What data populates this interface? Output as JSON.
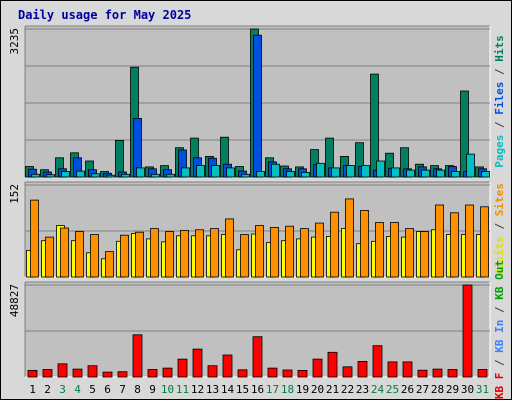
{
  "chart_data": {
    "title": "Daily usage for May 2025",
    "type": "bar",
    "days": [
      "1",
      "2",
      "3",
      "4",
      "5",
      "6",
      "7",
      "8",
      "9",
      "10",
      "11",
      "12",
      "13",
      "14",
      "15",
      "16",
      "17",
      "18",
      "19",
      "20",
      "21",
      "22",
      "23",
      "24",
      "25",
      "26",
      "27",
      "28",
      "29",
      "30",
      "31"
    ],
    "weekend_days": [
      "3",
      "4",
      "10",
      "11",
      "17",
      "18",
      "24",
      "25",
      "31"
    ],
    "panels": [
      {
        "max_label": "3235",
        "ymax": 3235,
        "axis_labels": [
          {
            "text": "Pages",
            "color": "#00c0c0"
          },
          {
            "text": " / ",
            "color": "#404040"
          },
          {
            "text": "Files",
            "color": "#0050e0"
          },
          {
            "text": " / ",
            "color": "#404040"
          },
          {
            "text": "Hits",
            "color": "#008060"
          }
        ],
        "series": [
          {
            "name": "Hits",
            "color": "#008060",
            "values": [
              230,
              160,
              420,
              530,
              350,
              120,
              800,
              2400,
              220,
              250,
              640,
              850,
              450,
              870,
              230,
              3235,
              420,
              240,
              220,
              600,
              850,
              450,
              750,
              2250,
              520,
              640,
              280,
              250,
              250,
              1880,
              220
            ]
          },
          {
            "name": "Files",
            "color": "#0050e0",
            "values": [
              170,
              110,
              180,
              420,
              160,
              80,
              110,
              1280,
              180,
              160,
              590,
              420,
              410,
              280,
              130,
              3100,
              330,
              180,
              180,
              270,
              200,
              250,
              230,
              150,
              190,
              180,
              220,
              180,
              230,
              120,
              180
            ]
          },
          {
            "name": "Pages",
            "color": "#00c0c0",
            "values": [
              60,
              50,
              120,
              130,
              70,
              40,
              60,
              200,
              60,
              60,
              200,
              250,
              250,
              200,
              60,
              120,
              280,
              120,
              100,
              300,
              200,
              250,
              250,
              350,
              200,
              150,
              150,
              150,
              120,
              500,
              120
            ]
          }
        ]
      },
      {
        "max_label": "152",
        "ymax": 152,
        "axis_labels": [
          {
            "text": "Visits",
            "color": "#e0e000"
          },
          {
            "text": " / ",
            "color": "#404040"
          },
          {
            "text": "Sites",
            "color": "#f09000"
          }
        ],
        "series": [
          {
            "name": "Visits",
            "color": "#ffff00",
            "values": [
              44,
              60,
              85,
              60,
              40,
              30,
              59,
              72,
              63,
              58,
              68,
              68,
              68,
              70,
              45,
              71,
              57,
              60,
              63,
              66,
              67,
              80,
              55,
              59,
              67,
              66,
              75,
              78,
              70,
              70,
              70
            ]
          },
          {
            "name": "Sites",
            "color": "#ff9000",
            "values": [
              127,
              66,
              81,
              75,
              70,
              42,
              69,
              74,
              80,
              75,
              77,
              78,
              80,
              96,
              70,
              85,
              82,
              84,
              80,
              89,
              107,
              129,
              110,
              90,
              90,
              80,
              75,
              119,
              106,
              119,
              116
            ]
          }
        ]
      },
      {
        "max_label": "48827",
        "ymax": 48827,
        "axis_labels": [
          {
            "text": "KB F",
            "color": "#e00000"
          },
          {
            "text": " / ",
            "color": "#404040"
          },
          {
            "text": "KB In",
            "color": "#4080ff"
          },
          {
            "text": " / ",
            "color": "#404040"
          },
          {
            "text": "KB Out",
            "color": "#00a000"
          }
        ],
        "series": [
          {
            "name": "KB F",
            "color": "#ff0000",
            "values": [
              3500,
              4000,
              7000,
              4200,
              6000,
              2600,
              2800,
              22400,
              4000,
              4700,
              9500,
              14800,
              6000,
              11700,
              3800,
              21400,
              4700,
              3700,
              3500,
              9500,
              13100,
              5400,
              8300,
              16600,
              8000,
              8000,
              3600,
              4200,
              4000,
              48827,
              4000
            ]
          }
        ]
      }
    ]
  }
}
